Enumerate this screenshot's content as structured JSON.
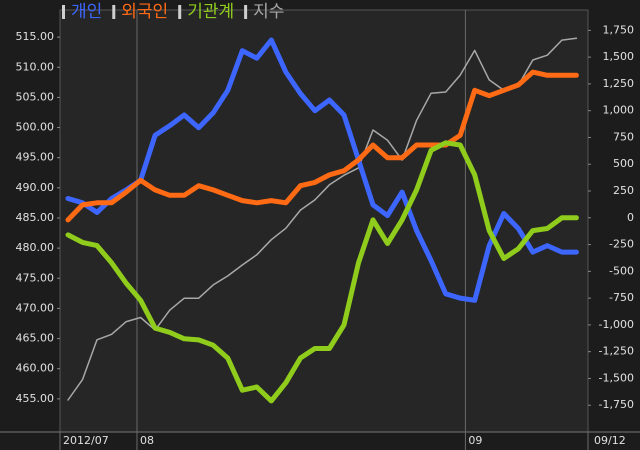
{
  "chart_data": {
    "type": "line",
    "x": [
      0,
      1,
      2,
      3,
      4,
      5,
      6,
      7,
      8,
      9,
      10,
      11,
      12,
      13,
      14,
      15,
      16,
      17,
      18,
      19,
      20,
      21,
      22,
      23,
      24,
      25,
      26,
      27,
      28,
      29,
      30,
      31,
      32,
      33,
      34,
      35
    ],
    "xlim": [
      -0.55,
      35.8
    ],
    "xticks": [
      {
        "value": -0.55,
        "label": "2012/07"
      },
      {
        "value": 4.75,
        "label": "08"
      },
      {
        "value": 27.36,
        "label": "09"
      },
      {
        "value": 35.8,
        "label": "09/12"
      }
    ],
    "ylim": [
      449.5,
      519.5
    ],
    "yticks": [
      {
        "value": 455,
        "label": "455.00"
      },
      {
        "value": 460,
        "label": "460.00"
      },
      {
        "value": 465,
        "label": "465.00"
      },
      {
        "value": 470,
        "label": "470.00"
      },
      {
        "value": 475,
        "label": "475.00"
      },
      {
        "value": 480,
        "label": "480.00"
      },
      {
        "value": 485,
        "label": "485.00"
      },
      {
        "value": 490,
        "label": "490.00"
      },
      {
        "value": 495,
        "label": "495.00"
      },
      {
        "value": 500,
        "label": "500.00"
      },
      {
        "value": 505,
        "label": "505.00"
      },
      {
        "value": 510,
        "label": "510.00"
      },
      {
        "value": 515,
        "label": "515.00"
      }
    ],
    "y2lim": [
      -2000,
      1940
    ],
    "y2ticks": [
      {
        "value": -1750,
        "label": "-1,750"
      },
      {
        "value": -1500,
        "label": "-1,500"
      },
      {
        "value": -1250,
        "label": "-1,250"
      },
      {
        "value": -1000,
        "label": "-1,000"
      },
      {
        "value": -750,
        "label": "-750"
      },
      {
        "value": -500,
        "label": "-500"
      },
      {
        "value": -250,
        "label": "-250"
      },
      0,
      250,
      500,
      750,
      {
        "value": 1000,
        "label": "1,000"
      },
      {
        "value": 1250,
        "label": "1,250"
      },
      {
        "value": 1500,
        "label": "1,500"
      },
      {
        "value": 1750,
        "label": "1,750"
      }
    ],
    "series": [
      {
        "name": "개인",
        "color": "#3d66ff",
        "axis": "y2",
        "values": [
          180,
          140,
          50,
          180,
          260,
          350,
          770,
          860,
          960,
          840,
          980,
          1190,
          1560,
          1490,
          1660,
          1360,
          1160,
          1000,
          1100,
          960,
          540,
          120,
          20,
          240,
          -120,
          -400,
          -710,
          -750,
          -770,
          -260,
          40,
          -100,
          -320,
          -260,
          -320,
          -320
        ]
      },
      {
        "name": "외국인",
        "color": "#ff6a14",
        "axis": "y2",
        "values": [
          -20,
          120,
          140,
          140,
          240,
          350,
          260,
          210,
          210,
          300,
          260,
          210,
          160,
          140,
          160,
          140,
          300,
          330,
          400,
          440,
          540,
          680,
          560,
          560,
          680,
          680,
          680,
          770,
          1190,
          1140,
          1190,
          1240,
          1360,
          1330,
          1330,
          1330
        ]
      },
      {
        "name": "기관계",
        "color": "#8fcc1c",
        "axis": "y2",
        "values": [
          -160,
          -230,
          -260,
          -420,
          -610,
          -770,
          -1030,
          -1070,
          -1130,
          -1140,
          -1190,
          -1310,
          -1610,
          -1580,
          -1710,
          -1540,
          -1310,
          -1220,
          -1220,
          -1000,
          -420,
          -20,
          -240,
          -20,
          260,
          630,
          700,
          680,
          400,
          -120,
          -380,
          -290,
          -120,
          -100,
          0,
          0
        ]
      },
      {
        "name": "지수",
        "color": "#a8a8a8",
        "values": [
          454.8,
          458.2,
          464.8,
          465.7,
          467.8,
          468.5,
          466.4,
          469.7,
          471.7,
          471.7,
          473.9,
          475.4,
          477.2,
          478.9,
          481.4,
          483.3,
          486.3,
          488.0,
          490.5,
          492.1,
          493.3,
          499.6,
          497.9,
          494.6,
          501.2,
          505.7,
          505.9,
          508.7,
          512.8,
          507.9,
          506.2,
          507.0,
          511.2,
          512.0,
          514.5,
          514.8
        ]
      }
    ]
  }
}
